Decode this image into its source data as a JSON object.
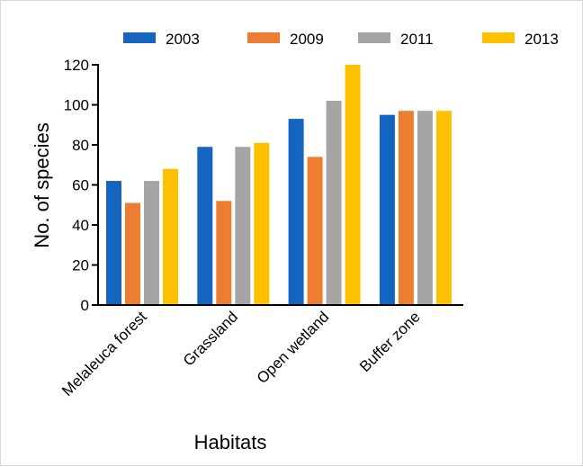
{
  "chart_data": {
    "type": "bar",
    "title": "",
    "xlabel": "Habitats",
    "ylabel": "No. of species",
    "categories": [
      "Melaleuca forest",
      "Grassland",
      "Open wetland",
      "Buffer zone"
    ],
    "series": [
      {
        "name": "2003",
        "color": "#1565c0",
        "values": [
          62,
          79,
          93,
          95
        ]
      },
      {
        "name": "2009",
        "color": "#ed7d31",
        "values": [
          51,
          52,
          74,
          97
        ]
      },
      {
        "name": "2011",
        "color": "#a5a5a5",
        "values": [
          62,
          79,
          102,
          97
        ]
      },
      {
        "name": "2013",
        "color": "#ffc000",
        "values": [
          68,
          81,
          120,
          97
        ]
      }
    ],
    "ylim": [
      0,
      120
    ],
    "yticks": [
      "0",
      "20",
      "40",
      "60",
      "80",
      "100",
      "120"
    ],
    "grid": false,
    "legend_position": "top"
  }
}
